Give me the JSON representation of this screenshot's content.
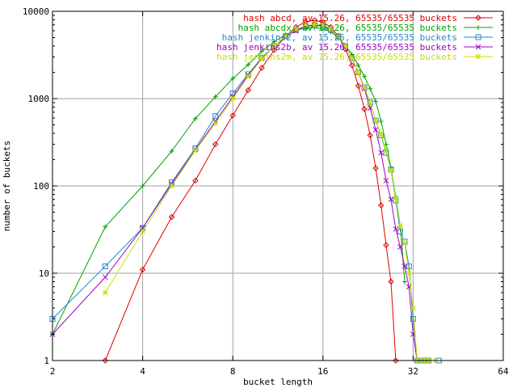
{
  "chart_data": {
    "type": "line",
    "xlabel": "bucket length",
    "ylabel": "number of buckets",
    "x_scale": "log2",
    "y_scale": "log10",
    "xlim": [
      2,
      64
    ],
    "ylim": [
      1,
      10000
    ],
    "grid": true,
    "legend_position": "top-right",
    "x_ticks": [
      {
        "value": 2,
        "label": "2"
      },
      {
        "value": 4,
        "label": "4"
      },
      {
        "value": 8,
        "label": "8"
      },
      {
        "value": 16,
        "label": "16"
      },
      {
        "value": 32,
        "label": "32"
      },
      {
        "value": 64,
        "label": "64"
      }
    ],
    "y_ticks": [
      {
        "value": 1,
        "label": "1"
      },
      {
        "value": 10,
        "label": "10"
      },
      {
        "value": 100,
        "label": "100"
      },
      {
        "value": 1000,
        "label": "1000"
      },
      {
        "value": 10000,
        "label": "10000"
      }
    ],
    "series": [
      {
        "name": "hash abcd, av 15.26, 65535/65535 buckets",
        "color": "#e00000",
        "marker": "diamond",
        "points": [
          [
            3,
            1
          ],
          [
            4,
            11
          ],
          [
            5,
            44
          ],
          [
            6,
            115
          ],
          [
            7,
            300
          ],
          [
            8,
            640
          ],
          [
            9,
            1250
          ],
          [
            10,
            2250
          ],
          [
            11,
            3600
          ],
          [
            12,
            5200
          ],
          [
            13,
            6600
          ],
          [
            14,
            7600
          ],
          [
            15,
            7900
          ],
          [
            16,
            7500
          ],
          [
            17,
            6600
          ],
          [
            18,
            5200
          ],
          [
            19,
            3700
          ],
          [
            20,
            2400
          ],
          [
            21,
            1400
          ],
          [
            22,
            760
          ],
          [
            23,
            380
          ],
          [
            24,
            160
          ],
          [
            25,
            60
          ],
          [
            26,
            21
          ],
          [
            27,
            8
          ],
          [
            28,
            1
          ]
        ]
      },
      {
        "name": "hash abcdx, av 15.26, 65535/65535 buckets",
        "color": "#00a000",
        "marker": "plus",
        "points": [
          [
            2,
            2
          ],
          [
            3,
            34
          ],
          [
            4,
            100
          ],
          [
            5,
            250
          ],
          [
            6,
            590
          ],
          [
            7,
            1050
          ],
          [
            8,
            1700
          ],
          [
            9,
            2450
          ],
          [
            10,
            3500
          ],
          [
            11,
            4500
          ],
          [
            12,
            5400
          ],
          [
            13,
            6100
          ],
          [
            14,
            6400
          ],
          [
            15,
            6500
          ],
          [
            16,
            6300
          ],
          [
            17,
            5800
          ],
          [
            18,
            5000
          ],
          [
            19,
            4100
          ],
          [
            20,
            3200
          ],
          [
            21,
            2400
          ],
          [
            22,
            1800
          ],
          [
            23,
            1300
          ],
          [
            24,
            930
          ],
          [
            25,
            550
          ],
          [
            26,
            300
          ],
          [
            27,
            160
          ],
          [
            28,
            75
          ],
          [
            29,
            35
          ],
          [
            30,
            8
          ]
        ]
      },
      {
        "name": "hash jenkins2, av 15.26, 65535/65535 buckets",
        "color": "#1e8cc8",
        "marker": "square",
        "points": [
          [
            2,
            3
          ],
          [
            3,
            12
          ],
          [
            4,
            33
          ],
          [
            5,
            110
          ],
          [
            6,
            270
          ],
          [
            7,
            630
          ],
          [
            8,
            1150
          ],
          [
            9,
            1900
          ],
          [
            10,
            2950
          ],
          [
            11,
            4000
          ],
          [
            12,
            5200
          ],
          [
            13,
            6100
          ],
          [
            14,
            6700
          ],
          [
            15,
            6900
          ],
          [
            16,
            6700
          ],
          [
            17,
            6100
          ],
          [
            18,
            5200
          ],
          [
            19,
            4000
          ],
          [
            20,
            2900
          ],
          [
            21,
            2000
          ],
          [
            22,
            1350
          ],
          [
            23,
            900
          ],
          [
            24,
            560
          ],
          [
            25,
            380
          ],
          [
            26,
            240
          ],
          [
            27,
            155
          ],
          [
            28,
            68
          ],
          [
            29,
            30
          ],
          [
            30,
            23
          ],
          [
            31,
            12
          ],
          [
            32,
            3
          ],
          [
            33,
            1
          ],
          [
            34,
            1
          ],
          [
            35,
            1
          ],
          [
            36,
            1
          ],
          [
            39,
            1
          ]
        ]
      },
      {
        "name": "hash jenkins2b, av 15.26, 65535/65535 buckets",
        "color": "#a000c0",
        "marker": "cross",
        "points": [
          [
            2,
            2
          ],
          [
            3,
            9
          ],
          [
            4,
            33
          ],
          [
            5,
            105
          ],
          [
            6,
            260
          ],
          [
            7,
            550
          ],
          [
            8,
            1050
          ],
          [
            9,
            1850
          ],
          [
            10,
            2900
          ],
          [
            11,
            4000
          ],
          [
            12,
            5100
          ],
          [
            13,
            6000
          ],
          [
            14,
            6700
          ],
          [
            15,
            7000
          ],
          [
            16,
            6800
          ],
          [
            17,
            6200
          ],
          [
            18,
            5200
          ],
          [
            19,
            4000
          ],
          [
            20,
            2900
          ],
          [
            21,
            2000
          ],
          [
            22,
            1300
          ],
          [
            23,
            780
          ],
          [
            24,
            440
          ],
          [
            25,
            240
          ],
          [
            26,
            115
          ],
          [
            27,
            70
          ],
          [
            28,
            32
          ],
          [
            29,
            20
          ],
          [
            30,
            12
          ],
          [
            31,
            7
          ],
          [
            32,
            2
          ],
          [
            33,
            1
          ],
          [
            34,
            1
          ],
          [
            35,
            1
          ],
          [
            36,
            1
          ]
        ]
      },
      {
        "name": "hash jenkins2m, av 15.26, 65535/65535 buckets",
        "color": "#c8e000",
        "marker": "star",
        "points": [
          [
            3,
            6
          ],
          [
            4,
            30
          ],
          [
            5,
            100
          ],
          [
            6,
            255
          ],
          [
            7,
            520
          ],
          [
            8,
            1000
          ],
          [
            9,
            1800
          ],
          [
            10,
            2850
          ],
          [
            11,
            4000
          ],
          [
            12,
            5200
          ],
          [
            13,
            6200
          ],
          [
            14,
            6900
          ],
          [
            15,
            7100
          ],
          [
            16,
            6900
          ],
          [
            17,
            6200
          ],
          [
            18,
            5200
          ],
          [
            19,
            4000
          ],
          [
            20,
            2900
          ],
          [
            21,
            2000
          ],
          [
            22,
            1350
          ],
          [
            23,
            880
          ],
          [
            24,
            560
          ],
          [
            25,
            390
          ],
          [
            26,
            250
          ],
          [
            27,
            150
          ],
          [
            28,
            72
          ],
          [
            29,
            35
          ],
          [
            30,
            22
          ],
          [
            31,
            10
          ],
          [
            32,
            4
          ],
          [
            33,
            1
          ],
          [
            34,
            1
          ],
          [
            35,
            1
          ],
          [
            36,
            1
          ],
          [
            38,
            1
          ]
        ]
      }
    ]
  }
}
